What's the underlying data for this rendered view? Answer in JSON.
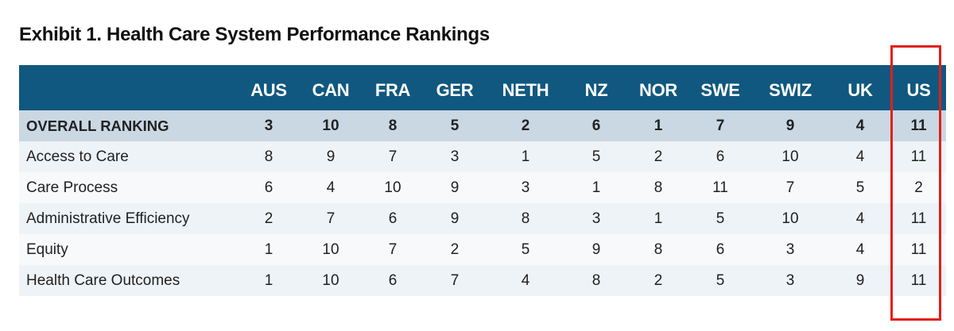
{
  "title": "Exhibit 1. Health Care System Performance Rankings",
  "highlight_color": "#e0201b",
  "header_color": "#10587f",
  "chart_data": {
    "type": "table",
    "title": "Exhibit 1. Health Care System Performance Rankings",
    "columns": [
      "AUS",
      "CAN",
      "FRA",
      "GER",
      "NETH",
      "NZ",
      "NOR",
      "SWE",
      "SWIZ",
      "UK",
      "US"
    ],
    "highlighted_column": "US",
    "rows": [
      {
        "label": "OVERALL RANKING",
        "values": [
          "3",
          "10",
          "8",
          "5",
          "2",
          "6",
          "1",
          "7",
          "9",
          "4",
          "11"
        ]
      },
      {
        "label": "Access to Care",
        "values": [
          "8",
          "9",
          "7",
          "3",
          "1",
          "5",
          "2",
          "6",
          "10",
          "4",
          "11"
        ]
      },
      {
        "label": "Care Process",
        "values": [
          "6",
          "4",
          "10",
          "9",
          "3",
          "1",
          "8",
          "11",
          "7",
          "5",
          "2"
        ]
      },
      {
        "label": "Administrative Efficiency",
        "values": [
          "2",
          "7",
          "6",
          "9",
          "8",
          "3",
          "1",
          "5",
          "10",
          "4",
          "11"
        ]
      },
      {
        "label": "Equity",
        "values": [
          "1",
          "10",
          "7",
          "2",
          "5",
          "9",
          "8",
          "6",
          "3",
          "4",
          "11"
        ]
      },
      {
        "label": "Health Care Outcomes",
        "values": [
          "1",
          "10",
          "6",
          "7",
          "4",
          "8",
          "2",
          "5",
          "3",
          "9",
          "11"
        ]
      }
    ]
  }
}
